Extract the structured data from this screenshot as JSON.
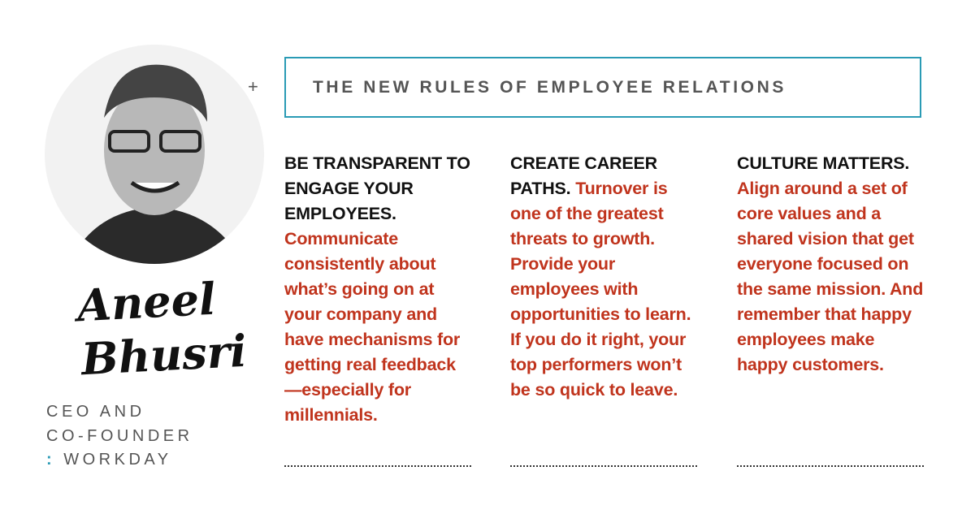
{
  "profile": {
    "name": [
      "Aneel",
      "Bhusri"
    ],
    "role": [
      "CEO AND",
      "CO-FOUNDER"
    ],
    "company_mark": ":",
    "company": "WORKDAY"
  },
  "header": {
    "title": "THE NEW RULES OF EMPLOYEE RELATIONS"
  },
  "columns": [
    {
      "heading": "BE TRANSPARENT TO ENGAGE YOUR EMPLOYEES.",
      "body": "Communicate consistently about what’s going on at your company and have mechanisms for getting real feedback—especial­ly for millennials."
    },
    {
      "heading": "CREATE CAREER PATHS.",
      "body": "Turnover is one of the greatest threats to growth. Provide your employees with opportunities to learn. If you do it right, your top performers won’t be so quick to leave."
    },
    {
      "heading": "CULTURE MATTERS.",
      "body": "Align around a set of core values and a shared vision that get everyone focused on the same mission. And remember that happy employees make happy customers."
    }
  ]
}
